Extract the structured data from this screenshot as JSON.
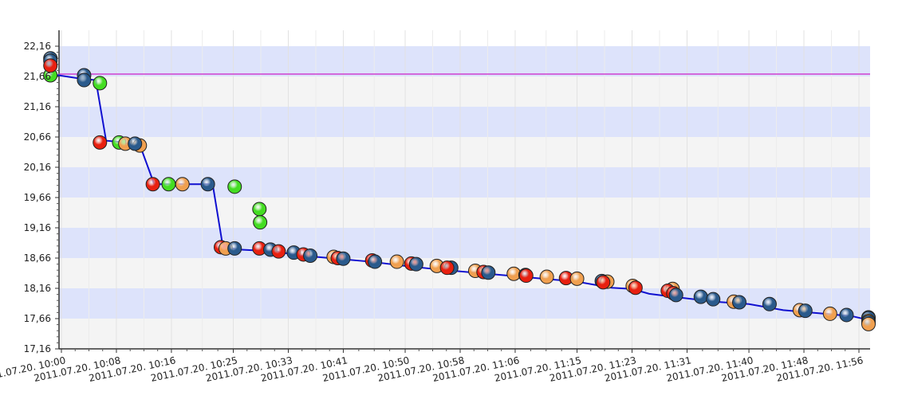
{
  "chart_data": {
    "type": "scatter",
    "y_ticks": [
      "22,16",
      "21,66",
      "21,16",
      "20,66",
      "20,16",
      "19,66",
      "19,16",
      "18,66",
      "18,16",
      "17,66",
      "17,16"
    ],
    "y_tick_values": [
      22.16,
      21.66,
      21.16,
      20.66,
      20.16,
      19.66,
      19.16,
      18.66,
      18.16,
      17.66,
      17.16
    ],
    "ylim": [
      17.16,
      22.16
    ],
    "x_ticks": [
      "2011.07.20. 10:00",
      "2011.07.20. 10:08",
      "2011.07.20. 10:16",
      "2011.07.20. 10:25",
      "2011.07.20. 10:33",
      "2011.07.20. 10:41",
      "2011.07.20. 10:50",
      "2011.07.20. 10:58",
      "2011.07.20. 11:06",
      "2011.07.20. 11:15",
      "2011.07.20. 11:23",
      "2011.07.20. 11:31",
      "2011.07.20. 11:40",
      "2011.07.20. 11:48",
      "2011.07.20. 11:56"
    ],
    "x_tick_minutes": [
      0,
      8,
      16,
      25,
      33,
      41,
      50,
      58,
      66,
      75,
      83,
      91,
      100,
      108,
      116
    ],
    "xlim_minutes": [
      -1.6,
      117.3
    ],
    "reference_line": {
      "y": 21.7,
      "color": "#d040d0"
    },
    "grid": true,
    "colors": {
      "red": "#e82010",
      "green": "#44dd22",
      "orange": "#f0a050",
      "blue": "#2a5a8c",
      "line": "#1010d0",
      "band_blue": "#dde3fb",
      "band_light": "#f4f4f4"
    },
    "line_series": [
      [
        -1.6,
        21.7
      ],
      [
        3,
        21.62
      ],
      [
        5,
        21.6
      ],
      [
        6.5,
        20.6
      ],
      [
        8.4,
        20.58
      ],
      [
        11.5,
        20.5
      ],
      [
        13.5,
        19.88
      ],
      [
        17.5,
        19.88
      ],
      [
        22,
        19.88
      ],
      [
        23.5,
        18.84
      ],
      [
        26,
        18.8
      ],
      [
        31,
        18.77
      ],
      [
        35,
        18.7
      ],
      [
        40,
        18.65
      ],
      [
        45,
        18.6
      ],
      [
        50,
        18.53
      ],
      [
        55,
        18.47
      ],
      [
        60,
        18.42
      ],
      [
        65,
        18.37
      ],
      [
        70,
        18.32
      ],
      [
        75,
        18.27
      ],
      [
        80,
        18.17
      ],
      [
        83,
        18.15
      ],
      [
        85.5,
        18.07
      ],
      [
        89,
        18.02
      ],
      [
        95,
        17.94
      ],
      [
        100,
        17.9
      ],
      [
        105,
        17.8
      ],
      [
        110,
        17.75
      ],
      [
        115,
        17.7
      ],
      [
        120,
        17.65
      ],
      [
        125,
        17.6
      ],
      [
        130,
        17.58
      ],
      [
        134,
        17.56
      ]
    ],
    "points": [
      {
        "x": -1.6,
        "y": 21.68,
        "c": "green"
      },
      {
        "x": -1.6,
        "y": 21.96,
        "c": "blue"
      },
      {
        "x": -1.6,
        "y": 21.92,
        "c": "blue"
      },
      {
        "x": -1.6,
        "y": 21.84,
        "c": "red"
      },
      {
        "x": 3.3,
        "y": 21.68,
        "c": "blue"
      },
      {
        "x": 3.3,
        "y": 21.6,
        "c": "blue"
      },
      {
        "x": 5.6,
        "y": 21.55,
        "c": "green"
      },
      {
        "x": 5.6,
        "y": 20.57,
        "c": "red"
      },
      {
        "x": 8.4,
        "y": 20.57,
        "c": "green"
      },
      {
        "x": 9.3,
        "y": 20.55,
        "c": "orange"
      },
      {
        "x": 11.4,
        "y": 20.52,
        "c": "orange"
      },
      {
        "x": 10.7,
        "y": 20.55,
        "c": "blue"
      },
      {
        "x": 13.3,
        "y": 19.88,
        "c": "red"
      },
      {
        "x": 15.6,
        "y": 19.88,
        "c": "green"
      },
      {
        "x": 17.6,
        "y": 19.88,
        "c": "orange"
      },
      {
        "x": 21.3,
        "y": 19.88,
        "c": "blue"
      },
      {
        "x": 25.2,
        "y": 19.84,
        "c": "green"
      },
      {
        "x": 28.8,
        "y": 19.47,
        "c": "green"
      },
      {
        "x": 28.9,
        "y": 19.25,
        "c": "green"
      },
      {
        "x": 23.2,
        "y": 18.84,
        "c": "red"
      },
      {
        "x": 23.9,
        "y": 18.82,
        "c": "orange"
      },
      {
        "x": 25.2,
        "y": 18.82,
        "c": "blue"
      },
      {
        "x": 28.8,
        "y": 18.82,
        "c": "red"
      },
      {
        "x": 30.4,
        "y": 18.8,
        "c": "blue"
      },
      {
        "x": 31.6,
        "y": 18.77,
        "c": "red"
      },
      {
        "x": 33.8,
        "y": 18.75,
        "c": "blue"
      },
      {
        "x": 35.2,
        "y": 18.72,
        "c": "red"
      },
      {
        "x": 36.2,
        "y": 18.7,
        "c": "blue"
      },
      {
        "x": 39.6,
        "y": 18.68,
        "c": "orange"
      },
      {
        "x": 40.2,
        "y": 18.66,
        "c": "red"
      },
      {
        "x": 41.0,
        "y": 18.65,
        "c": "blue"
      },
      {
        "x": 45.2,
        "y": 18.62,
        "c": "red"
      },
      {
        "x": 45.6,
        "y": 18.6,
        "c": "blue"
      },
      {
        "x": 48.8,
        "y": 18.6,
        "c": "orange"
      },
      {
        "x": 50.9,
        "y": 18.57,
        "c": "red"
      },
      {
        "x": 51.6,
        "y": 18.56,
        "c": "blue"
      },
      {
        "x": 54.6,
        "y": 18.53,
        "c": "orange"
      },
      {
        "x": 56.7,
        "y": 18.5,
        "c": "blue"
      },
      {
        "x": 56.1,
        "y": 18.5,
        "c": "red"
      },
      {
        "x": 60.2,
        "y": 18.45,
        "c": "orange"
      },
      {
        "x": 61.4,
        "y": 18.43,
        "c": "red"
      },
      {
        "x": 62.1,
        "y": 18.42,
        "c": "blue"
      },
      {
        "x": 65.8,
        "y": 18.4,
        "c": "orange"
      },
      {
        "x": 67.5,
        "y": 18.38,
        "c": "blue"
      },
      {
        "x": 67.6,
        "y": 18.37,
        "c": "red"
      },
      {
        "x": 70.6,
        "y": 18.35,
        "c": "orange"
      },
      {
        "x": 73.4,
        "y": 18.33,
        "c": "red"
      },
      {
        "x": 75.0,
        "y": 18.32,
        "c": "orange"
      },
      {
        "x": 78.6,
        "y": 18.28,
        "c": "blue"
      },
      {
        "x": 79.4,
        "y": 18.27,
        "c": "orange"
      },
      {
        "x": 78.8,
        "y": 18.26,
        "c": "red"
      },
      {
        "x": 83.1,
        "y": 18.2,
        "c": "orange"
      },
      {
        "x": 83.5,
        "y": 18.17,
        "c": "red"
      },
      {
        "x": 88.9,
        "y": 18.15,
        "c": "orange"
      },
      {
        "x": 88.2,
        "y": 18.12,
        "c": "red"
      },
      {
        "x": 89.0,
        "y": 18.08,
        "c": "red"
      },
      {
        "x": 89.4,
        "y": 18.05,
        "c": "blue"
      },
      {
        "x": 93.0,
        "y": 18.02,
        "c": "blue"
      },
      {
        "x": 94.8,
        "y": 17.98,
        "c": "blue"
      },
      {
        "x": 97.8,
        "y": 17.94,
        "c": "orange"
      },
      {
        "x": 98.6,
        "y": 17.93,
        "c": "blue"
      },
      {
        "x": 103.0,
        "y": 17.9,
        "c": "blue"
      },
      {
        "x": 107.4,
        "y": 17.8,
        "c": "orange"
      },
      {
        "x": 108.2,
        "y": 17.79,
        "c": "blue"
      },
      {
        "x": 111.8,
        "y": 17.74,
        "c": "orange"
      },
      {
        "x": 114.2,
        "y": 17.72,
        "c": "blue"
      },
      {
        "x": 117.4,
        "y": 17.68,
        "c": "orange"
      },
      {
        "x": 118.8,
        "y": 17.67,
        "c": "blue"
      },
      {
        "x": 122.3,
        "y": 17.62,
        "c": "orange"
      },
      {
        "x": 124.9,
        "y": 17.6,
        "c": "blue"
      },
      {
        "x": 128.0,
        "y": 17.57,
        "c": "orange"
      }
    ]
  }
}
